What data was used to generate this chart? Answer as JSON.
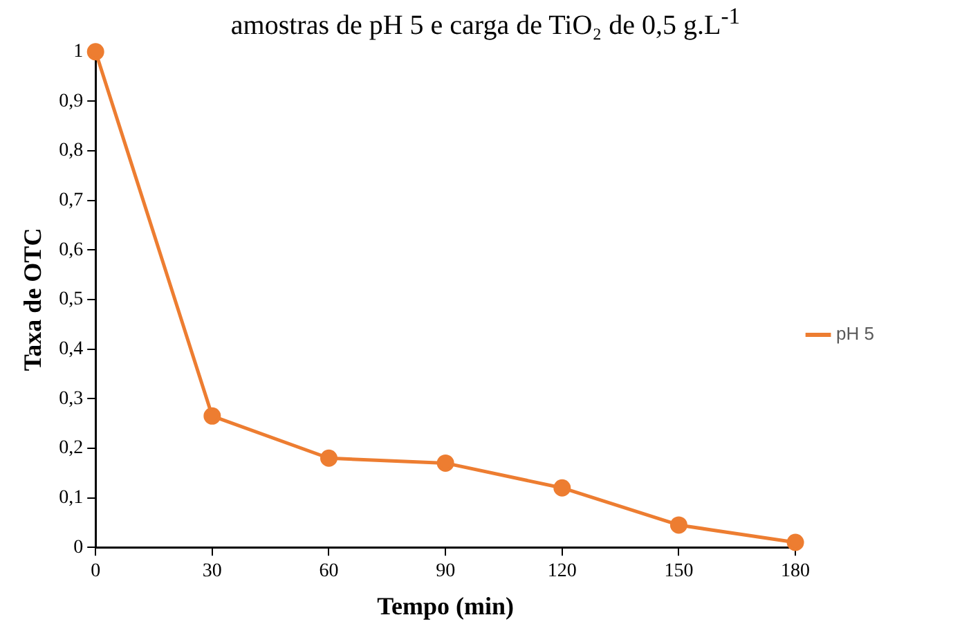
{
  "chart_data": {
    "type": "line",
    "title": "amostras de pH 5 e carga de TiO₂ de 0,5 g.L$^{-1}$",
    "xlabel": "Tempo (min)",
    "ylabel": "Taxa de OTC",
    "x": [
      0,
      30,
      60,
      90,
      120,
      150,
      180
    ],
    "series": [
      {
        "name": "pH 5",
        "color": "#ed7d31",
        "values": [
          1,
          0.265,
          0.18,
          0.17,
          0.12,
          0.045,
          0.01
        ]
      }
    ],
    "xlim": [
      0,
      180
    ],
    "xticks": [
      0,
      30,
      60,
      90,
      120,
      150,
      180
    ],
    "ylim": [
      0,
      1
    ],
    "yticks": [
      0,
      {
        "value": 0.1,
        "label": "0,1"
      },
      {
        "value": 0.2,
        "label": "0,2"
      },
      {
        "value": 0.3,
        "label": "0,3"
      },
      {
        "value": 0.4,
        "label": "0,4"
      },
      {
        "value": 0.5,
        "label": "0,5"
      },
      {
        "value": 0.6,
        "label": "0,6"
      },
      {
        "value": 0.7,
        "label": "0,7"
      },
      {
        "value": 0.8,
        "label": "0,8"
      },
      {
        "value": 0.9,
        "label": "0,9"
      },
      1
    ],
    "grid": false,
    "legend": "right",
    "marker": "circle",
    "line_style": "solid"
  }
}
